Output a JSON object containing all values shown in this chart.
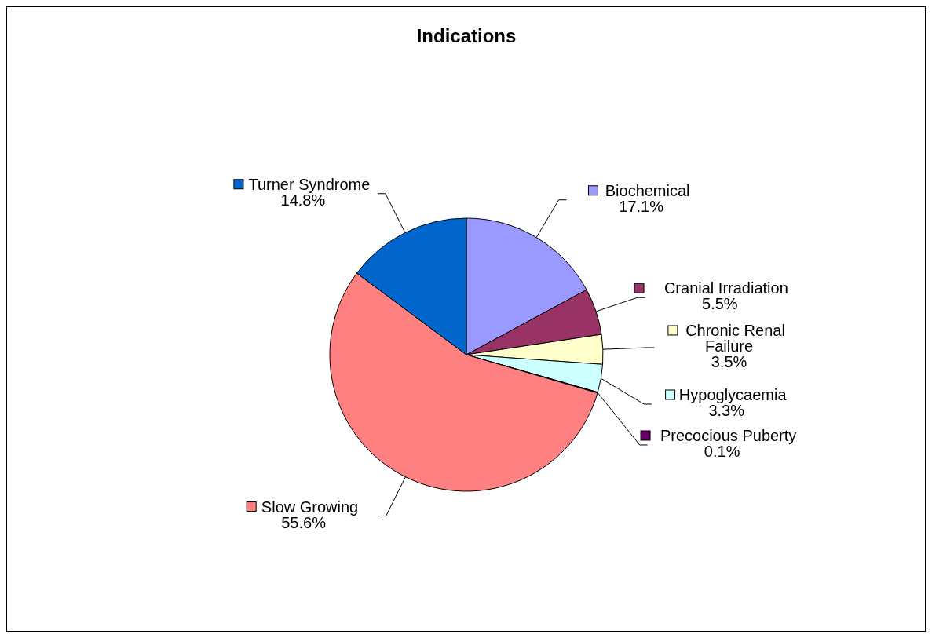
{
  "chart_data": {
    "type": "pie",
    "title": "Indications",
    "categories": [
      "Biochemical",
      "Cranial Irradiation",
      "Chronic Renal Failure",
      "Hypoglycaemia",
      "Precocious Puberty",
      "Slow Growing",
      "Turner Syndrome"
    ],
    "values": [
      17.1,
      5.5,
      3.5,
      3.3,
      0.1,
      55.6,
      14.8
    ],
    "colors": [
      "#9999ff",
      "#993366",
      "#ffffcc",
      "#ccffff",
      "#660066",
      "#ff8080",
      "#0066cc"
    ],
    "legend": "right",
    "value_labels": [
      "17.1%",
      "5.5%",
      "3.5%",
      "3.3%",
      "0.1%",
      "55.6%",
      "14.8%"
    ]
  }
}
